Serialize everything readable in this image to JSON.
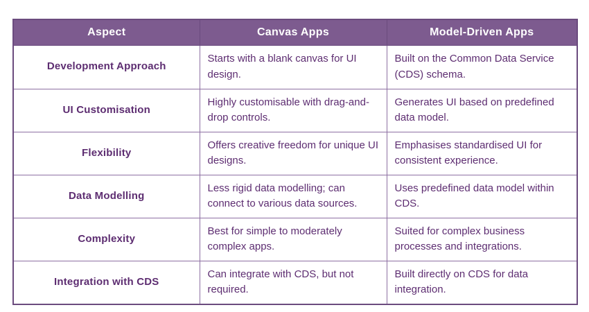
{
  "chart_data": {
    "type": "table",
    "columns": [
      "Aspect",
      "Canvas Apps",
      "Model-Driven Apps"
    ],
    "rows": [
      [
        "Development Approach",
        "Starts with a blank canvas for UI design.",
        "Built on the Common Data Service (CDS) schema."
      ],
      [
        "UI Customisation",
        "Highly customisable with drag-and-drop controls.",
        "Generates UI based on predefined data model."
      ],
      [
        "Flexibility",
        "Offers creative freedom for unique UI designs.",
        "Emphasises standardised UI for consistent experience."
      ],
      [
        "Data Modelling",
        "Less rigid data modelling; can connect to various data sources.",
        "Uses predefined data model within CDS."
      ],
      [
        "Complexity",
        "Best for simple to moderately complex apps.",
        "Suited for complex business processes and integrations."
      ],
      [
        "Integration with CDS",
        "Can integrate with CDS, but not required.",
        "Built directly on CDS for data integration."
      ]
    ],
    "layout": "3-column comparison table, header row purple, body rows white"
  },
  "theme": {
    "page_bg": "#ffffff",
    "header_bg": "#7d5b8f",
    "header_text": "#ffffff",
    "body_text": "#5d2d71",
    "border": "#8d6fa2",
    "outer_border": "#6b4b7e"
  }
}
